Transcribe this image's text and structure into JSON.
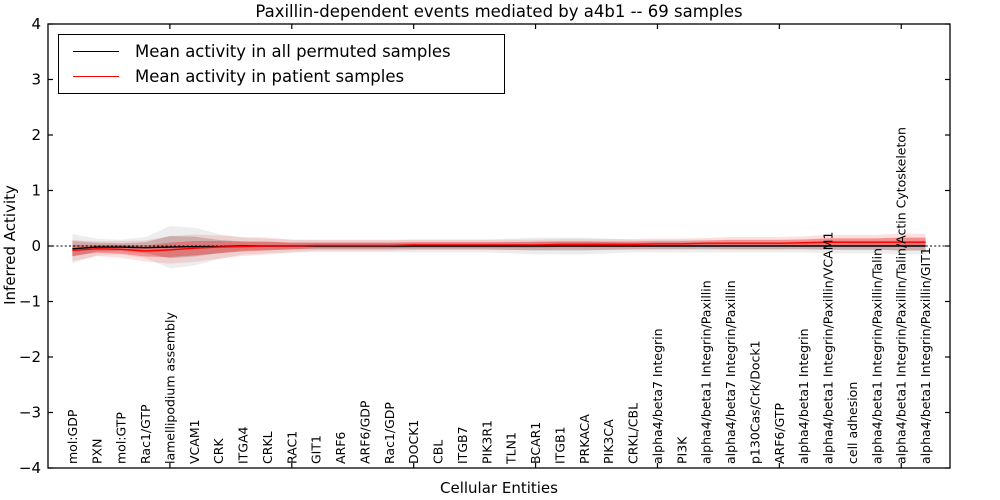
{
  "figure": {
    "title": "Paxillin-dependent events mediated by a4b1 -- 69 samples",
    "xlabel": "Cellular Entities",
    "ylabel": "Inferred Activity"
  },
  "legend": {
    "items": [
      {
        "label": "Mean activity in all permuted samples",
        "color": "#000000"
      },
      {
        "label": "Mean activity in patient samples",
        "color": "#ff0000"
      }
    ],
    "position": "upper left"
  },
  "chart_data": {
    "type": "line",
    "title": "Paxillin-dependent events mediated by a4b1 -- 69 samples",
    "xlabel": "Cellular Entities",
    "ylabel": "Inferred Activity",
    "ylim": [
      -4,
      4
    ],
    "yticks": [
      4,
      3,
      2,
      1,
      0,
      -1,
      -2,
      -3,
      -4
    ],
    "xtick_marks_every": 5,
    "grid": false,
    "zero_line_style": "dotted-black",
    "legend_position": "upper left",
    "categories": [
      "mol:GDP",
      "PXN",
      "mol:GTP",
      "Rac1/GTP",
      "lamellipodium assembly",
      "VCAM1",
      "CRK",
      "ITGA4",
      "CRKL",
      "RAC1",
      "GIT1",
      "ARF6",
      "ARF6/GDP",
      "Rac1/GDP",
      "DOCK1",
      "CBL",
      "ITGB7",
      "PIK3R1",
      "TLN1",
      "BCAR1",
      "ITGB1",
      "PRKACA",
      "PIK3CA",
      "CRKL/CBL",
      "alpha4/beta7 Integrin",
      "PI3K",
      "alpha4/beta1 Integrin/Paxillin",
      "alpha4/beta7 Integrin/Paxillin",
      "p130Cas/Crk/Dock1",
      "ARF6/GTP",
      "alpha4/beta1 Integrin",
      "alpha4/beta1 Integrin/Paxillin/VCAM1",
      "cell adhesion",
      "alpha4/beta1 Integrin/Paxillin/Talin",
      "alpha4/beta1 Integrin/Paxillin/Talin/Actin Cytoskeleton",
      "alpha4/beta1 Integrin/Paxillin/GIT1"
    ],
    "series": [
      {
        "name": "Mean activity in all permuted samples",
        "color": "#000000",
        "values": [
          -0.05,
          -0.02,
          -0.02,
          -0.03,
          -0.02,
          -0.01,
          -0.01,
          0,
          0,
          0,
          0,
          0,
          0,
          0,
          0,
          0,
          0,
          0,
          0,
          0,
          0,
          0,
          0,
          0,
          0,
          0,
          0,
          0,
          0,
          0,
          0,
          0,
          0,
          0,
          0,
          0
        ],
        "std": [
          0.14,
          0.08,
          0.07,
          0.1,
          0.2,
          0.18,
          0.12,
          0.08,
          0.07,
          0.06,
          0.06,
          0.06,
          0.06,
          0.06,
          0.06,
          0.06,
          0.06,
          0.06,
          0.07,
          0.08,
          0.08,
          0.08,
          0.07,
          0.06,
          0.06,
          0.06,
          0.06,
          0.06,
          0.06,
          0.06,
          0.06,
          0.07,
          0.07,
          0.07,
          0.08,
          0.08
        ]
      },
      {
        "name": "Mean activity in patient samples",
        "color": "#ff0000",
        "values": [
          -0.08,
          -0.05,
          -0.06,
          -0.09,
          -0.07,
          -0.04,
          -0.02,
          -0.01,
          0,
          0,
          0.01,
          0.01,
          0.01,
          0.01,
          0.02,
          0.02,
          0.02,
          0.02,
          0.02,
          0.02,
          0.03,
          0.03,
          0.03,
          0.03,
          0.04,
          0.04,
          0.05,
          0.05,
          0.05,
          0.05,
          0.06,
          0.07,
          0.07,
          0.07,
          0.07,
          0.07
        ],
        "std": [
          0.1,
          0.07,
          0.08,
          0.1,
          0.13,
          0.13,
          0.11,
          0.09,
          0.08,
          0.06,
          0.05,
          0.05,
          0.05,
          0.05,
          0.05,
          0.05,
          0.05,
          0.05,
          0.05,
          0.05,
          0.05,
          0.05,
          0.05,
          0.05,
          0.05,
          0.05,
          0.05,
          0.06,
          0.06,
          0.06,
          0.06,
          0.07,
          0.07,
          0.07,
          0.08,
          0.08
        ]
      }
    ]
  }
}
